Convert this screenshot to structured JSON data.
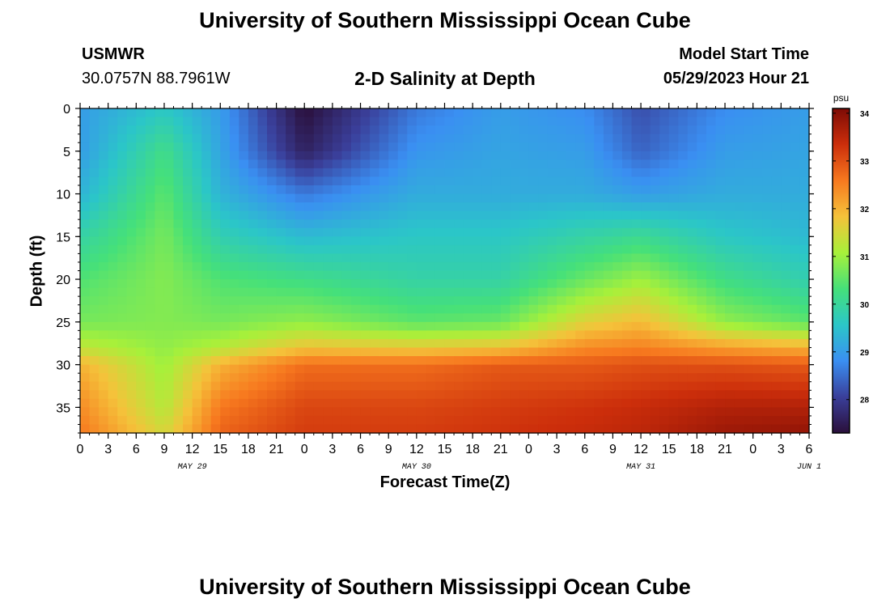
{
  "header": {
    "title": "University of Southern Mississippi Ocean Cube",
    "station": "USMWR",
    "coords": "30.0757N  88.7961W",
    "subtitle": "2-D Salinity at Depth",
    "model_start_label": "Model Start Time",
    "model_start_value": "05/29/2023 Hour 21"
  },
  "footer": {
    "title": "University of Southern Mississippi Ocean Cube"
  },
  "colors": {
    "background": "#ffffff",
    "colormap": [
      "#2a0f3a",
      "#3a3f9a",
      "#3a8ff2",
      "#2bc6c8",
      "#45e07a",
      "#a8f03a",
      "#f5c23a",
      "#f7791f",
      "#cc2e0b",
      "#7d0b05"
    ]
  },
  "chart_data": {
    "type": "heatmap",
    "xlabel": "Forecast Time(Z)",
    "ylabel": "Depth (ft)",
    "x_ticks": [
      "0",
      "3",
      "6",
      "9",
      "12",
      "15",
      "18",
      "21",
      "0",
      "3",
      "6",
      "9",
      "12",
      "15",
      "18",
      "21",
      "0",
      "3",
      "6",
      "9",
      "12",
      "15",
      "18",
      "21",
      "0",
      "3",
      "6"
    ],
    "date_labels": [
      {
        "label": "MAY 29",
        "hours": 12
      },
      {
        "label": "MAY 30",
        "hours": 36
      },
      {
        "label": "MAY 31",
        "hours": 60
      },
      {
        "label": "JUN 1",
        "hours": 78
      }
    ],
    "xlim_hours": [
      0,
      78
    ],
    "y_ticks": [
      "0",
      "5",
      "10",
      "15",
      "20",
      "25",
      "30",
      "35"
    ],
    "ylim": [
      0,
      38
    ],
    "colorbar": {
      "unit": "psu",
      "ticks": [
        "34",
        "33",
        "32",
        "31",
        "30",
        "29",
        "28"
      ],
      "min": 27.3,
      "max": 34.1
    },
    "salinity_profiles": {
      "depths_ft": [
        0,
        5,
        10,
        15,
        20,
        25,
        28,
        30,
        35,
        38
      ],
      "profiles": [
        {
          "hours": 0,
          "values": [
            29.0,
            29.0,
            29.3,
            29.9,
            30.4,
            30.7,
            31.3,
            32.0,
            32.4,
            32.6
          ]
        },
        {
          "hours": 9,
          "values": [
            29.6,
            30.2,
            30.5,
            30.7,
            30.8,
            30.8,
            30.9,
            31.0,
            31.2,
            31.5
          ]
        },
        {
          "hours": 15,
          "values": [
            29.0,
            29.1,
            29.3,
            29.8,
            30.4,
            30.7,
            31.2,
            32.0,
            32.6,
            32.8
          ]
        },
        {
          "hours": 24,
          "values": [
            27.3,
            27.6,
            28.6,
            29.4,
            30.2,
            30.9,
            31.8,
            32.7,
            33.1,
            33.2
          ]
        },
        {
          "hours": 36,
          "values": [
            28.6,
            28.9,
            29.2,
            29.6,
            29.9,
            30.5,
            31.7,
            32.7,
            33.1,
            33.2
          ]
        },
        {
          "hours": 45,
          "values": [
            29.0,
            29.1,
            29.2,
            29.6,
            29.9,
            30.6,
            31.8,
            32.9,
            33.2,
            33.3
          ]
        },
        {
          "hours": 54,
          "values": [
            28.8,
            29.0,
            29.2,
            29.9,
            30.6,
            31.6,
            32.4,
            32.9,
            33.3,
            33.4
          ]
        },
        {
          "hours": 60,
          "values": [
            28.2,
            28.4,
            29.0,
            30.1,
            31.0,
            31.9,
            32.5,
            33.0,
            33.4,
            33.5
          ]
        },
        {
          "hours": 69,
          "values": [
            28.8,
            29.0,
            29.2,
            29.6,
            30.2,
            30.9,
            32.2,
            33.0,
            33.6,
            33.8
          ]
        },
        {
          "hours": 78,
          "values": [
            29.0,
            29.1,
            29.2,
            29.4,
            29.8,
            30.5,
            32.0,
            32.9,
            33.6,
            33.9
          ]
        }
      ]
    }
  }
}
